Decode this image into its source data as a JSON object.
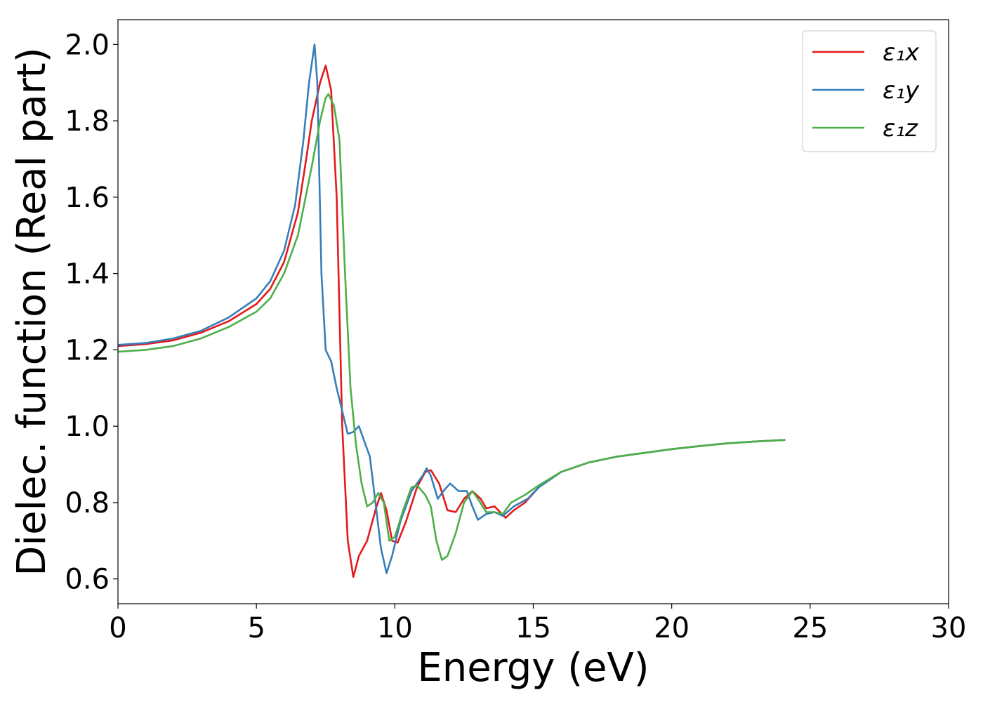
{
  "chart_data": {
    "type": "line",
    "title": "",
    "xlabel": "Energy (eV)",
    "ylabel": "Dielec. function (Real part)",
    "xlim": [
      0,
      30
    ],
    "ylim": [
      0.535,
      2.065
    ],
    "xticks": [
      0,
      5,
      10,
      15,
      20,
      25,
      30
    ],
    "yticks": [
      0.6,
      0.8,
      1.0,
      1.2,
      1.4,
      1.6,
      1.8,
      2.0
    ],
    "xtick_labels": [
      "0",
      "5",
      "10",
      "15",
      "20",
      "25",
      "30"
    ],
    "ytick_labels": [
      "0.6",
      "0.8",
      "1.0",
      "1.2",
      "1.4",
      "1.6",
      "1.8",
      "2.0"
    ],
    "grid": false,
    "legend_position": "top-right",
    "series": [
      {
        "name": "ε₁x",
        "color": "#e41a1c",
        "points": [
          [
            0,
            1.21
          ],
          [
            1,
            1.215
          ],
          [
            2,
            1.225
          ],
          [
            3,
            1.245
          ],
          [
            4,
            1.275
          ],
          [
            5,
            1.32
          ],
          [
            5.5,
            1.36
          ],
          [
            6,
            1.43
          ],
          [
            6.5,
            1.56
          ],
          [
            6.8,
            1.7
          ],
          [
            7.0,
            1.8
          ],
          [
            7.3,
            1.9
          ],
          [
            7.5,
            1.945
          ],
          [
            7.7,
            1.88
          ],
          [
            7.9,
            1.6
          ],
          [
            8.1,
            1.0
          ],
          [
            8.3,
            0.7
          ],
          [
            8.5,
            0.605
          ],
          [
            8.7,
            0.66
          ],
          [
            9.0,
            0.7
          ],
          [
            9.3,
            0.78
          ],
          [
            9.5,
            0.825
          ],
          [
            9.7,
            0.78
          ],
          [
            9.9,
            0.7
          ],
          [
            10.1,
            0.695
          ],
          [
            10.4,
            0.75
          ],
          [
            10.8,
            0.84
          ],
          [
            11.1,
            0.88
          ],
          [
            11.3,
            0.885
          ],
          [
            11.6,
            0.85
          ],
          [
            11.9,
            0.78
          ],
          [
            12.2,
            0.775
          ],
          [
            12.5,
            0.81
          ],
          [
            12.8,
            0.83
          ],
          [
            13.1,
            0.81
          ],
          [
            13.3,
            0.785
          ],
          [
            13.6,
            0.79
          ],
          [
            13.8,
            0.775
          ],
          [
            14.0,
            0.76
          ],
          [
            14.3,
            0.78
          ],
          [
            14.7,
            0.8
          ],
          [
            15.2,
            0.84
          ],
          [
            16,
            0.88
          ],
          [
            17,
            0.905
          ],
          [
            18,
            0.92
          ],
          [
            19,
            0.93
          ],
          [
            20,
            0.94
          ],
          [
            21,
            0.948
          ],
          [
            22,
            0.955
          ],
          [
            23,
            0.96
          ],
          [
            24.1,
            0.964
          ]
        ]
      },
      {
        "name": "ε₁y",
        "color": "#377eb8",
        "points": [
          [
            0,
            1.213
          ],
          [
            1,
            1.218
          ],
          [
            2,
            1.23
          ],
          [
            3,
            1.25
          ],
          [
            4,
            1.285
          ],
          [
            5,
            1.335
          ],
          [
            5.5,
            1.38
          ],
          [
            6,
            1.46
          ],
          [
            6.4,
            1.58
          ],
          [
            6.7,
            1.75
          ],
          [
            6.9,
            1.9
          ],
          [
            7.1,
            2.0
          ],
          [
            7.2,
            1.9
          ],
          [
            7.35,
            1.4
          ],
          [
            7.5,
            1.2
          ],
          [
            7.7,
            1.17
          ],
          [
            7.9,
            1.1
          ],
          [
            8.1,
            1.04
          ],
          [
            8.3,
            0.98
          ],
          [
            8.5,
            0.985
          ],
          [
            8.7,
            1.0
          ],
          [
            8.9,
            0.96
          ],
          [
            9.1,
            0.92
          ],
          [
            9.3,
            0.8
          ],
          [
            9.5,
            0.68
          ],
          [
            9.7,
            0.615
          ],
          [
            9.9,
            0.66
          ],
          [
            10.2,
            0.75
          ],
          [
            10.6,
            0.83
          ],
          [
            11.0,
            0.87
          ],
          [
            11.15,
            0.89
          ],
          [
            11.3,
            0.87
          ],
          [
            11.55,
            0.81
          ],
          [
            11.75,
            0.83
          ],
          [
            12.0,
            0.85
          ],
          [
            12.3,
            0.83
          ],
          [
            12.6,
            0.83
          ],
          [
            12.8,
            0.79
          ],
          [
            13.0,
            0.755
          ],
          [
            13.3,
            0.77
          ],
          [
            13.6,
            0.775
          ],
          [
            13.9,
            0.765
          ],
          [
            14.3,
            0.79
          ],
          [
            14.8,
            0.81
          ],
          [
            15.2,
            0.84
          ],
          [
            16,
            0.88
          ],
          [
            17,
            0.905
          ],
          [
            18,
            0.92
          ],
          [
            19,
            0.93
          ],
          [
            20,
            0.94
          ],
          [
            21,
            0.948
          ],
          [
            22,
            0.955
          ],
          [
            23,
            0.96
          ],
          [
            24.1,
            0.964
          ]
        ]
      },
      {
        "name": "ε₁z",
        "color": "#4daf4a",
        "points": [
          [
            0,
            1.195
          ],
          [
            1,
            1.2
          ],
          [
            2,
            1.21
          ],
          [
            3,
            1.23
          ],
          [
            4,
            1.26
          ],
          [
            5,
            1.3
          ],
          [
            5.5,
            1.335
          ],
          [
            6,
            1.4
          ],
          [
            6.5,
            1.5
          ],
          [
            7.0,
            1.68
          ],
          [
            7.3,
            1.8
          ],
          [
            7.5,
            1.86
          ],
          [
            7.6,
            1.87
          ],
          [
            7.8,
            1.84
          ],
          [
            8.0,
            1.75
          ],
          [
            8.2,
            1.4
          ],
          [
            8.4,
            1.1
          ],
          [
            8.6,
            0.95
          ],
          [
            8.8,
            0.85
          ],
          [
            9.0,
            0.79
          ],
          [
            9.2,
            0.8
          ],
          [
            9.4,
            0.825
          ],
          [
            9.6,
            0.8
          ],
          [
            9.8,
            0.7
          ],
          [
            10.0,
            0.71
          ],
          [
            10.3,
            0.78
          ],
          [
            10.6,
            0.84
          ],
          [
            10.8,
            0.845
          ],
          [
            11.1,
            0.82
          ],
          [
            11.3,
            0.79
          ],
          [
            11.5,
            0.7
          ],
          [
            11.7,
            0.65
          ],
          [
            11.9,
            0.66
          ],
          [
            12.2,
            0.72
          ],
          [
            12.5,
            0.8
          ],
          [
            12.8,
            0.83
          ],
          [
            13.0,
            0.81
          ],
          [
            13.3,
            0.775
          ],
          [
            13.6,
            0.775
          ],
          [
            13.9,
            0.77
          ],
          [
            14.2,
            0.8
          ],
          [
            14.7,
            0.82
          ],
          [
            15.2,
            0.845
          ],
          [
            16,
            0.88
          ],
          [
            17,
            0.905
          ],
          [
            18,
            0.92
          ],
          [
            19,
            0.93
          ],
          [
            20,
            0.94
          ],
          [
            21,
            0.948
          ],
          [
            22,
            0.955
          ],
          [
            23,
            0.96
          ],
          [
            24.1,
            0.964
          ]
        ]
      }
    ]
  }
}
